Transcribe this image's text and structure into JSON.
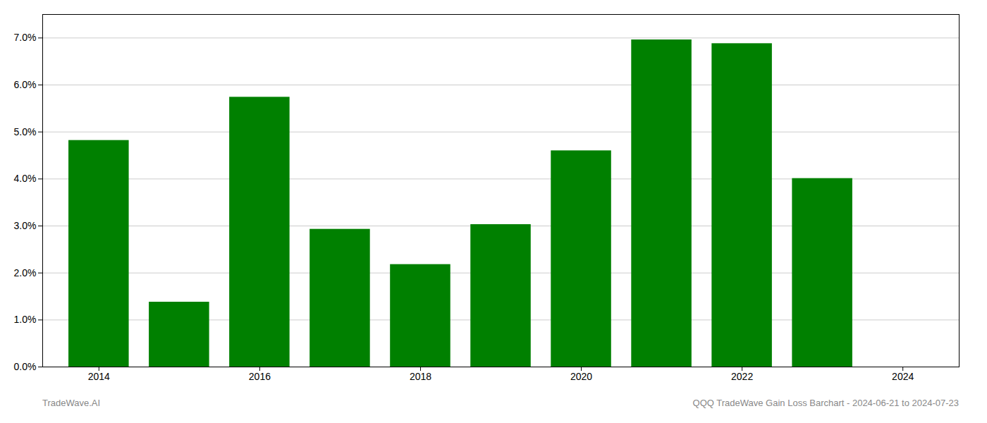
{
  "chart_data": {
    "type": "bar",
    "x": [
      2014,
      2015,
      2016,
      2017,
      2018,
      2019,
      2020,
      2021,
      2022,
      2023
    ],
    "values": [
      0.0482,
      0.0138,
      0.0574,
      0.0293,
      0.0218,
      0.0303,
      0.046,
      0.0696,
      0.0688,
      0.0401
    ],
    "color": "#008000",
    "xlim": [
      2013.3,
      2024.7
    ],
    "xticks": [
      2014,
      2016,
      2018,
      2020,
      2022,
      2024
    ],
    "ylim": [
      0,
      0.075
    ],
    "yticks": [
      {
        "value": 0.0,
        "label": "0.0%"
      },
      {
        "value": 0.01,
        "label": "1.0%"
      },
      {
        "value": 0.02,
        "label": "2.0%"
      },
      {
        "value": 0.03,
        "label": "3.0%"
      },
      {
        "value": 0.04,
        "label": "4.0%"
      },
      {
        "value": 0.05,
        "label": "5.0%"
      },
      {
        "value": 0.06,
        "label": "6.0%"
      },
      {
        "value": 0.07,
        "label": "7.0%"
      }
    ],
    "grid": true,
    "annotations": [
      "TradeWave.AI",
      "QQQ TradeWave Gain Loss Barchart - 2024-06-21 to 2024-07-23"
    ]
  }
}
